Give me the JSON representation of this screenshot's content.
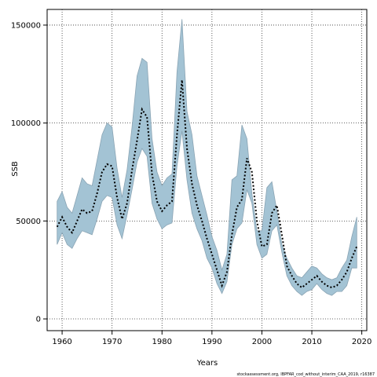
{
  "chart_data": {
    "type": "line",
    "title": "",
    "xlabel": "Years",
    "ylabel": "SSB",
    "xlim": [
      1957,
      2021
    ],
    "ylim": [
      -6000,
      158000
    ],
    "x_ticks": [
      1960,
      1970,
      1980,
      1990,
      2000,
      2010,
      2020
    ],
    "y_ticks": [
      0,
      50000,
      100000,
      150000
    ],
    "grid": true,
    "colors": {
      "band_fill": "#a3c3d4",
      "band_stroke": "#8aa4b4",
      "line": "#000000"
    },
    "credit": "stockassessment.org, IBPFAR_cod_without_interim_CAA_2019, r16387",
    "x": [
      1959,
      1960,
      1961,
      1962,
      1963,
      1964,
      1965,
      1966,
      1967,
      1968,
      1969,
      1970,
      1971,
      1972,
      1973,
      1974,
      1975,
      1976,
      1977,
      1978,
      1979,
      1980,
      1981,
      1982,
      1983,
      1984,
      1985,
      1986,
      1987,
      1988,
      1989,
      1990,
      1991,
      1992,
      1993,
      1994,
      1995,
      1996,
      1997,
      1998,
      1999,
      2000,
      2001,
      2002,
      2003,
      2004,
      2005,
      2006,
      2007,
      2008,
      2009,
      2010,
      2011,
      2012,
      2013,
      2014,
      2015,
      2016,
      2017,
      2018,
      2019
    ],
    "series": [
      {
        "values": [
          47000,
          52000,
          47000,
          44000,
          50000,
          56000,
          54000,
          55000,
          64000,
          75000,
          79000,
          78000,
          62000,
          51000,
          59000,
          76000,
          91000,
          107000,
          103000,
          74000,
          60000,
          55000,
          58000,
          60000,
          94000,
          122000,
          87000,
          69000,
          58000,
          50000,
          41000,
          33000,
          25000,
          17000,
          24000,
          43000,
          57000,
          61000,
          82000,
          75000,
          50000,
          37000,
          38000,
          54000,
          58000,
          43000,
          27000,
          22000,
          18000,
          16000,
          18000,
          20000,
          22000,
          19000,
          17000,
          16000,
          17000,
          20000,
          24000,
          31000,
          37000
        ]
      },
      {
        "values": [
          60000,
          65000,
          57000,
          54000,
          63000,
          72000,
          69000,
          68000,
          81000,
          94000,
          100000,
          98000,
          77000,
          62000,
          76000,
          98000,
          124000,
          133000,
          131000,
          92000,
          75000,
          68000,
          72000,
          74000,
          126000,
          153000,
          106000,
          94000,
          73000,
          63000,
          53000,
          42000,
          35000,
          25000,
          33000,
          71000,
          73000,
          99000,
          92000,
          64000,
          45000,
          45000,
          67000,
          70000,
          55000,
          38000,
          31000,
          26000,
          22000,
          21000,
          24000,
          27000,
          26000,
          23000,
          21000,
          20000,
          21000,
          26000,
          30000,
          42000,
          52000
        ]
      },
      {
        "values": [
          38000,
          44000,
          38000,
          36000,
          41000,
          45000,
          44000,
          43000,
          51000,
          60000,
          63000,
          62000,
          48000,
          41000,
          53000,
          66000,
          80000,
          87000,
          83000,
          59000,
          51000,
          46000,
          48000,
          49000,
          78000,
          96000,
          71000,
          54000,
          46000,
          40000,
          31000,
          26000,
          18000,
          13000,
          19000,
          38000,
          46000,
          49000,
          66000,
          59000,
          38000,
          31000,
          33000,
          45000,
          48000,
          34000,
          22000,
          17000,
          14000,
          12000,
          14000,
          15000,
          18000,
          15000,
          13000,
          12000,
          14000,
          14000,
          17000,
          26000,
          26000
        ]
      }
    ]
  }
}
